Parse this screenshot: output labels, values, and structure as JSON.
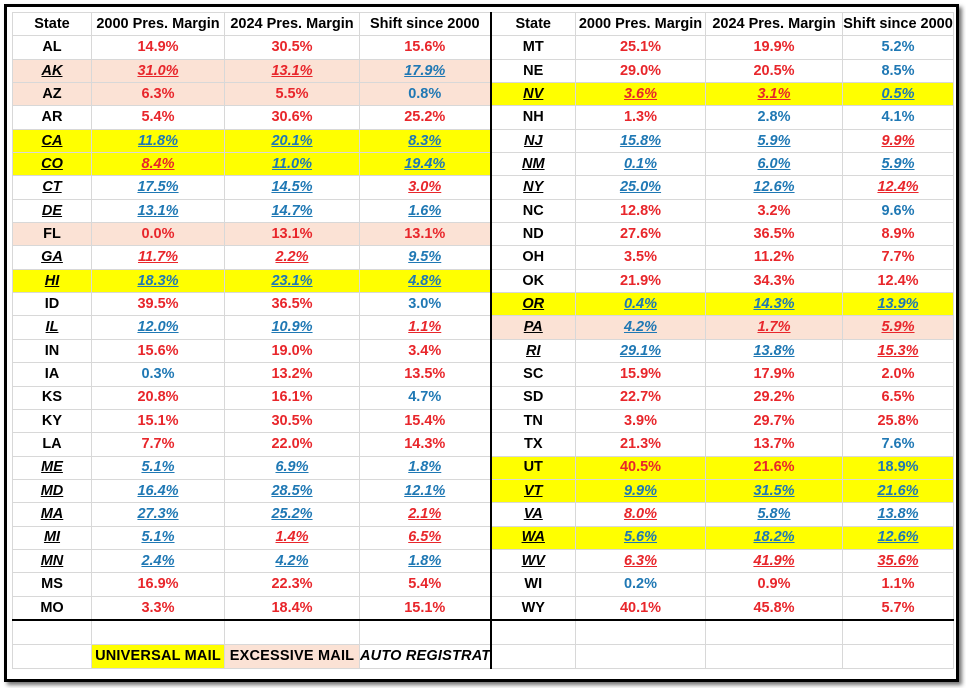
{
  "headers": [
    "State",
    "2000 Pres. Margin",
    "2024 Pres. Margin",
    "Shift since 2000"
  ],
  "left": [
    {
      "state": "AL",
      "m2000": "14.9%",
      "c2000": "r",
      "m2024": "30.5%",
      "c2024": "r",
      "shift": "15.6%",
      "cs": "r",
      "italic": false,
      "hl": ""
    },
    {
      "state": "AK",
      "m2000": "31.0%",
      "c2000": "r",
      "m2024": "13.1%",
      "c2024": "r",
      "shift": "17.9%",
      "cs": "b",
      "italic": true,
      "hl": "p"
    },
    {
      "state": "AZ",
      "m2000": "6.3%",
      "c2000": "r",
      "m2024": "5.5%",
      "c2024": "r",
      "shift": "0.8%",
      "cs": "b",
      "italic": false,
      "hl": "p"
    },
    {
      "state": "AR",
      "m2000": "5.4%",
      "c2000": "r",
      "m2024": "30.6%",
      "c2024": "r",
      "shift": "25.2%",
      "cs": "r",
      "italic": false,
      "hl": ""
    },
    {
      "state": "CA",
      "m2000": "11.8%",
      "c2000": "b",
      "m2024": "20.1%",
      "c2024": "b",
      "shift": "8.3%",
      "cs": "b",
      "italic": true,
      "hl": "y"
    },
    {
      "state": "CO",
      "m2000": "8.4%",
      "c2000": "r",
      "m2024": "11.0%",
      "c2024": "b",
      "shift": "19.4%",
      "cs": "b",
      "italic": true,
      "hl": "y"
    },
    {
      "state": "CT",
      "m2000": "17.5%",
      "c2000": "b",
      "m2024": "14.5%",
      "c2024": "b",
      "shift": "3.0%",
      "cs": "r",
      "italic": true,
      "hl": ""
    },
    {
      "state": "DE",
      "m2000": "13.1%",
      "c2000": "b",
      "m2024": "14.7%",
      "c2024": "b",
      "shift": "1.6%",
      "cs": "b",
      "italic": true,
      "hl": ""
    },
    {
      "state": "FL",
      "m2000": "0.0%",
      "c2000": "r",
      "m2024": "13.1%",
      "c2024": "r",
      "shift": "13.1%",
      "cs": "r",
      "italic": false,
      "hl": "p"
    },
    {
      "state": "GA",
      "m2000": "11.7%",
      "c2000": "r",
      "m2024": "2.2%",
      "c2024": "r",
      "shift": "9.5%",
      "cs": "b",
      "italic": true,
      "hl": ""
    },
    {
      "state": "HI",
      "m2000": "18.3%",
      "c2000": "b",
      "m2024": "23.1%",
      "c2024": "b",
      "shift": "4.8%",
      "cs": "b",
      "italic": true,
      "hl": "y"
    },
    {
      "state": "ID",
      "m2000": "39.5%",
      "c2000": "r",
      "m2024": "36.5%",
      "c2024": "r",
      "shift": "3.0%",
      "cs": "b",
      "italic": false,
      "hl": ""
    },
    {
      "state": "IL",
      "m2000": "12.0%",
      "c2000": "b",
      "m2024": "10.9%",
      "c2024": "b",
      "shift": "1.1%",
      "cs": "r",
      "italic": true,
      "hl": ""
    },
    {
      "state": "IN",
      "m2000": "15.6%",
      "c2000": "r",
      "m2024": "19.0%",
      "c2024": "r",
      "shift": "3.4%",
      "cs": "r",
      "italic": false,
      "hl": ""
    },
    {
      "state": "IA",
      "m2000": "0.3%",
      "c2000": "b",
      "m2024": "13.2%",
      "c2024": "r",
      "shift": "13.5%",
      "cs": "r",
      "italic": false,
      "hl": ""
    },
    {
      "state": "KS",
      "m2000": "20.8%",
      "c2000": "r",
      "m2024": "16.1%",
      "c2024": "r",
      "shift": "4.7%",
      "cs": "b",
      "italic": false,
      "hl": ""
    },
    {
      "state": "KY",
      "m2000": "15.1%",
      "c2000": "r",
      "m2024": "30.5%",
      "c2024": "r",
      "shift": "15.4%",
      "cs": "r",
      "italic": false,
      "hl": ""
    },
    {
      "state": "LA",
      "m2000": "7.7%",
      "c2000": "r",
      "m2024": "22.0%",
      "c2024": "r",
      "shift": "14.3%",
      "cs": "r",
      "italic": false,
      "hl": ""
    },
    {
      "state": "ME",
      "m2000": "5.1%",
      "c2000": "b",
      "m2024": "6.9%",
      "c2024": "b",
      "shift": "1.8%",
      "cs": "b",
      "italic": true,
      "hl": ""
    },
    {
      "state": "MD",
      "m2000": "16.4%",
      "c2000": "b",
      "m2024": "28.5%",
      "c2024": "b",
      "shift": "12.1%",
      "cs": "b",
      "italic": true,
      "hl": ""
    },
    {
      "state": "MA",
      "m2000": "27.3%",
      "c2000": "b",
      "m2024": "25.2%",
      "c2024": "b",
      "shift": "2.1%",
      "cs": "r",
      "italic": true,
      "hl": ""
    },
    {
      "state": "MI",
      "m2000": "5.1%",
      "c2000": "b",
      "m2024": "1.4%",
      "c2024": "r",
      "shift": "6.5%",
      "cs": "r",
      "italic": true,
      "hl": ""
    },
    {
      "state": "MN",
      "m2000": "2.4%",
      "c2000": "b",
      "m2024": "4.2%",
      "c2024": "b",
      "shift": "1.8%",
      "cs": "b",
      "italic": true,
      "hl": ""
    },
    {
      "state": "MS",
      "m2000": "16.9%",
      "c2000": "r",
      "m2024": "22.3%",
      "c2024": "r",
      "shift": "5.4%",
      "cs": "r",
      "italic": false,
      "hl": ""
    },
    {
      "state": "MO",
      "m2000": "3.3%",
      "c2000": "r",
      "m2024": "18.4%",
      "c2024": "r",
      "shift": "15.1%",
      "cs": "r",
      "italic": false,
      "hl": ""
    }
  ],
  "right": [
    {
      "state": "MT",
      "m2000": "25.1%",
      "c2000": "r",
      "m2024": "19.9%",
      "c2024": "r",
      "shift": "5.2%",
      "cs": "b",
      "italic": false,
      "hl": ""
    },
    {
      "state": "NE",
      "m2000": "29.0%",
      "c2000": "r",
      "m2024": "20.5%",
      "c2024": "r",
      "shift": "8.5%",
      "cs": "b",
      "italic": false,
      "hl": ""
    },
    {
      "state": "NV",
      "m2000": "3.6%",
      "c2000": "r",
      "m2024": "3.1%",
      "c2024": "r",
      "shift": "0.5%",
      "cs": "b",
      "italic": true,
      "hl": "y"
    },
    {
      "state": "NH",
      "m2000": "1.3%",
      "c2000": "r",
      "m2024": "2.8%",
      "c2024": "b",
      "shift": "4.1%",
      "cs": "b",
      "italic": false,
      "hl": ""
    },
    {
      "state": "NJ",
      "m2000": "15.8%",
      "c2000": "b",
      "m2024": "5.9%",
      "c2024": "b",
      "shift": "9.9%",
      "cs": "r",
      "italic": true,
      "hl": ""
    },
    {
      "state": "NM",
      "m2000": "0.1%",
      "c2000": "b",
      "m2024": "6.0%",
      "c2024": "b",
      "shift": "5.9%",
      "cs": "b",
      "italic": true,
      "hl": ""
    },
    {
      "state": "NY",
      "m2000": "25.0%",
      "c2000": "b",
      "m2024": "12.6%",
      "c2024": "b",
      "shift": "12.4%",
      "cs": "r",
      "italic": true,
      "hl": ""
    },
    {
      "state": "NC",
      "m2000": "12.8%",
      "c2000": "r",
      "m2024": "3.2%",
      "c2024": "r",
      "shift": "9.6%",
      "cs": "b",
      "italic": false,
      "hl": ""
    },
    {
      "state": "ND",
      "m2000": "27.6%",
      "c2000": "r",
      "m2024": "36.5%",
      "c2024": "r",
      "shift": "8.9%",
      "cs": "r",
      "italic": false,
      "hl": ""
    },
    {
      "state": "OH",
      "m2000": "3.5%",
      "c2000": "r",
      "m2024": "11.2%",
      "c2024": "r",
      "shift": "7.7%",
      "cs": "r",
      "italic": false,
      "hl": ""
    },
    {
      "state": "OK",
      "m2000": "21.9%",
      "c2000": "r",
      "m2024": "34.3%",
      "c2024": "r",
      "shift": "12.4%",
      "cs": "r",
      "italic": false,
      "hl": ""
    },
    {
      "state": "OR",
      "m2000": "0.4%",
      "c2000": "b",
      "m2024": "14.3%",
      "c2024": "b",
      "shift": "13.9%",
      "cs": "b",
      "italic": true,
      "hl": "y"
    },
    {
      "state": "PA",
      "m2000": "4.2%",
      "c2000": "b",
      "m2024": "1.7%",
      "c2024": "r",
      "shift": "5.9%",
      "cs": "r",
      "italic": true,
      "hl": "p"
    },
    {
      "state": "RI",
      "m2000": "29.1%",
      "c2000": "b",
      "m2024": "13.8%",
      "c2024": "b",
      "shift": "15.3%",
      "cs": "r",
      "italic": true,
      "hl": ""
    },
    {
      "state": "SC",
      "m2000": "15.9%",
      "c2000": "r",
      "m2024": "17.9%",
      "c2024": "r",
      "shift": "2.0%",
      "cs": "r",
      "italic": false,
      "hl": ""
    },
    {
      "state": "SD",
      "m2000": "22.7%",
      "c2000": "r",
      "m2024": "29.2%",
      "c2024": "r",
      "shift": "6.5%",
      "cs": "r",
      "italic": false,
      "hl": ""
    },
    {
      "state": "TN",
      "m2000": "3.9%",
      "c2000": "r",
      "m2024": "29.7%",
      "c2024": "r",
      "shift": "25.8%",
      "cs": "r",
      "italic": false,
      "hl": ""
    },
    {
      "state": "TX",
      "m2000": "21.3%",
      "c2000": "r",
      "m2024": "13.7%",
      "c2024": "r",
      "shift": "7.6%",
      "cs": "b",
      "italic": false,
      "hl": ""
    },
    {
      "state": "UT",
      "m2000": "40.5%",
      "c2000": "r",
      "m2024": "21.6%",
      "c2024": "r",
      "shift": "18.9%",
      "cs": "b",
      "italic": false,
      "hl": "y"
    },
    {
      "state": "VT",
      "m2000": "9.9%",
      "c2000": "b",
      "m2024": "31.5%",
      "c2024": "b",
      "shift": "21.6%",
      "cs": "b",
      "italic": true,
      "hl": "y"
    },
    {
      "state": "VA",
      "m2000": "8.0%",
      "c2000": "r",
      "m2024": "5.8%",
      "c2024": "b",
      "shift": "13.8%",
      "cs": "b",
      "italic": true,
      "hl": ""
    },
    {
      "state": "WA",
      "m2000": "5.6%",
      "c2000": "b",
      "m2024": "18.2%",
      "c2024": "b",
      "shift": "12.6%",
      "cs": "b",
      "italic": true,
      "hl": "y"
    },
    {
      "state": "WV",
      "m2000": "6.3%",
      "c2000": "r",
      "m2024": "41.9%",
      "c2024": "r",
      "shift": "35.6%",
      "cs": "r",
      "italic": true,
      "hl": ""
    },
    {
      "state": "WI",
      "m2000": "0.2%",
      "c2000": "b",
      "m2024": "0.9%",
      "c2024": "r",
      "shift": "1.1%",
      "cs": "r",
      "italic": false,
      "hl": ""
    },
    {
      "state": "WY",
      "m2000": "40.1%",
      "c2000": "r",
      "m2024": "45.8%",
      "c2024": "r",
      "shift": "5.7%",
      "cs": "r",
      "italic": false,
      "hl": ""
    }
  ],
  "legend": {
    "universal_mail": "UNIVERSAL MAIL",
    "excessive_mail": "EXCESSIVE MAIL",
    "auto_registration": "AUTO REGISTRATION"
  },
  "colors": {
    "republican_red": "#e8262b",
    "democrat_blue": "#1f78b4",
    "universal_mail_yellow": "#ffff00",
    "excessive_mail_pink": "#fbe2d5"
  }
}
